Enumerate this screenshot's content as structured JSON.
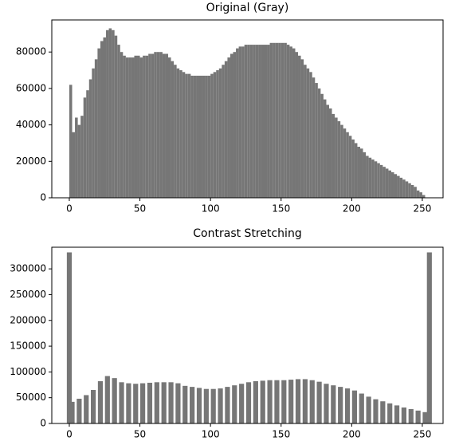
{
  "chart_data": [
    {
      "type": "histogram",
      "title": "Original (Gray)",
      "color": "#767676",
      "bins": [
        0,
        2,
        4,
        6,
        8,
        10,
        12,
        14,
        16,
        18,
        20,
        22,
        24,
        26,
        28,
        30,
        32,
        34,
        36,
        38,
        40,
        42,
        44,
        46,
        48,
        50,
        52,
        54,
        56,
        58,
        60,
        62,
        64,
        66,
        68,
        70,
        72,
        74,
        76,
        78,
        80,
        82,
        84,
        86,
        88,
        90,
        92,
        94,
        96,
        98,
        100,
        102,
        104,
        106,
        108,
        110,
        112,
        114,
        116,
        118,
        120,
        122,
        124,
        126,
        128,
        130,
        132,
        134,
        136,
        138,
        140,
        142,
        144,
        146,
        148,
        150,
        152,
        154,
        156,
        158,
        160,
        162,
        164,
        166,
        168,
        170,
        172,
        174,
        176,
        178,
        180,
        182,
        184,
        186,
        188,
        190,
        192,
        194,
        196,
        198,
        200,
        202,
        204,
        206,
        208,
        210,
        212,
        214,
        216,
        218,
        220,
        222,
        224,
        226,
        228,
        230,
        232,
        234,
        236,
        238,
        240,
        242,
        244,
        246,
        248,
        250,
        252,
        254,
        256
      ],
      "values": [
        62000,
        36000,
        44000,
        40000,
        45000,
        55000,
        59000,
        65000,
        71000,
        76000,
        82000,
        86000,
        88000,
        92000,
        93000,
        92000,
        89000,
        84000,
        80000,
        78000,
        77000,
        77000,
        77000,
        78000,
        78000,
        77000,
        78000,
        78000,
        79000,
        79000,
        80000,
        80000,
        80000,
        79000,
        79000,
        77000,
        75000,
        73000,
        71000,
        70000,
        69000,
        68000,
        68000,
        67000,
        67000,
        67000,
        67000,
        67000,
        67000,
        67000,
        68000,
        69000,
        70000,
        71000,
        73000,
        75000,
        77000,
        79000,
        80000,
        82000,
        83000,
        83000,
        84000,
        84000,
        84000,
        84000,
        84000,
        84000,
        84000,
        84000,
        84000,
        85000,
        85000,
        85000,
        85000,
        85000,
        85000,
        84000,
        83000,
        82000,
        80000,
        78000,
        76000,
        73000,
        71000,
        69000,
        66000,
        63000,
        60000,
        57000,
        54000,
        51000,
        49000,
        46000,
        44000,
        42000,
        40000,
        38000,
        36000,
        34000,
        32000,
        30000,
        28000,
        27000,
        25000,
        23000,
        22000,
        21000,
        20000,
        19000,
        18000,
        17000,
        16000,
        15000,
        14000,
        13000,
        12000,
        11000,
        10000,
        9000,
        8000,
        7000,
        6000,
        4000,
        3000,
        1500,
        0,
        0
      ],
      "xlim": [
        -12.4,
        264.7
      ],
      "xticks": [
        0,
        50,
        100,
        150,
        200,
        250
      ],
      "ylim": [
        0,
        97600
      ],
      "yticks": [
        0,
        20000,
        40000,
        60000,
        80000
      ]
    },
    {
      "type": "bar",
      "title": "Contrast Stretching",
      "color": "#767676",
      "x": [
        0,
        2,
        7,
        12,
        17,
        22,
        27,
        32,
        37,
        42,
        47,
        52,
        57,
        62,
        67,
        72,
        77,
        82,
        87,
        92,
        97,
        102,
        107,
        112,
        117,
        122,
        127,
        132,
        137,
        142,
        147,
        152,
        157,
        162,
        167,
        172,
        177,
        182,
        187,
        192,
        197,
        202,
        207,
        212,
        217,
        222,
        227,
        232,
        237,
        242,
        247,
        252,
        255
      ],
      "values": [
        332000,
        42000,
        48000,
        55000,
        65000,
        82000,
        92000,
        88000,
        80000,
        78000,
        77000,
        78000,
        79000,
        80000,
        80000,
        80000,
        78000,
        73000,
        71000,
        69000,
        67000,
        67000,
        68000,
        71000,
        74000,
        77000,
        80000,
        82000,
        83000,
        84000,
        84000,
        84000,
        85000,
        86000,
        86000,
        84000,
        81000,
        77000,
        74000,
        71000,
        68000,
        64000,
        58000,
        52000,
        47000,
        43000,
        39000,
        35000,
        31000,
        28000,
        25000,
        22000,
        332000
      ],
      "xlim": [
        -12.4,
        264.7
      ],
      "xticks": [
        0,
        50,
        100,
        150,
        200,
        250
      ],
      "ylim": [
        0,
        342000
      ],
      "yticks": [
        0,
        50000,
        100000,
        150000,
        200000,
        250000,
        300000
      ]
    }
  ]
}
